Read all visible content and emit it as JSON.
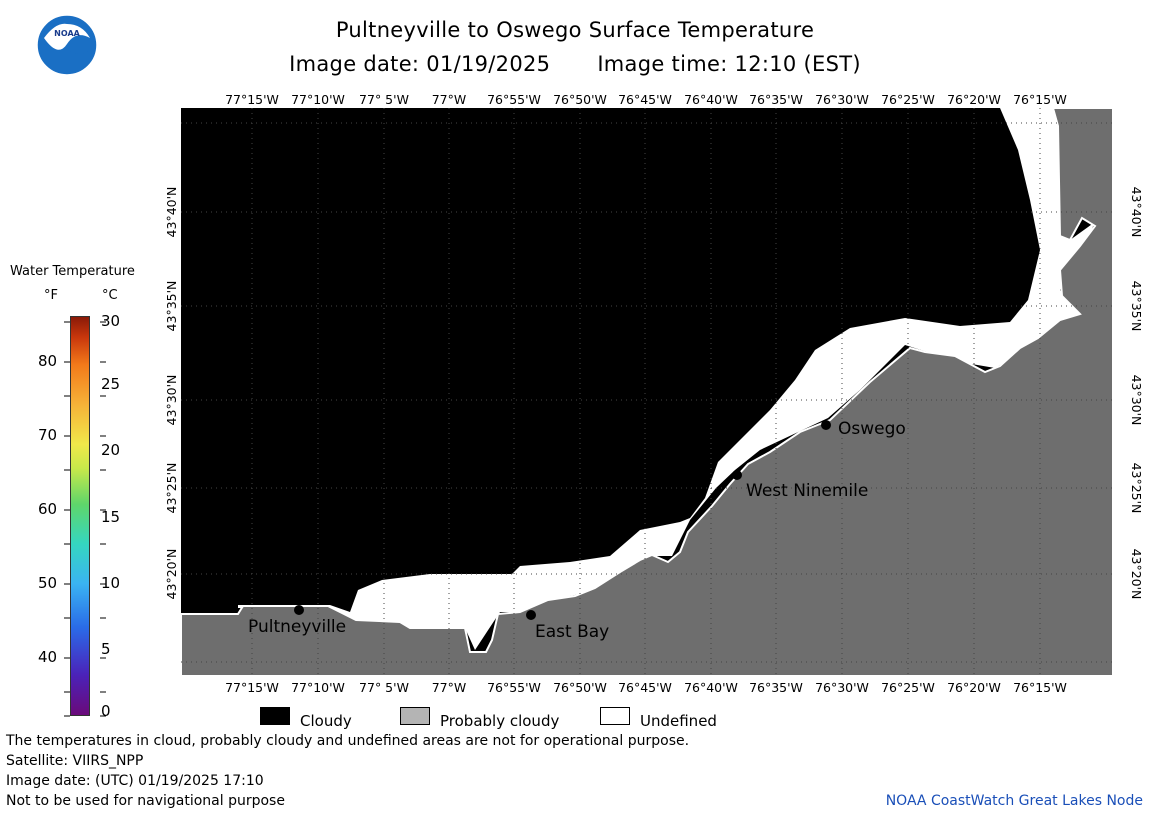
{
  "title": "Pultneyville to Oswego Surface Temperature",
  "image_date_label": "Image date: 01/19/2025",
  "image_time_label": "Image time: 12:10 (EST)",
  "logo_text": "NOAA",
  "colorbar": {
    "title": "Water Temperature",
    "unit_f": "°F",
    "unit_c": "°C",
    "fahrenheit_ticks": [
      "80",
      "70",
      "60",
      "50",
      "40"
    ],
    "celsius_ticks": [
      "30",
      "25",
      "20",
      "15",
      "10",
      "5",
      "0"
    ]
  },
  "map": {
    "lon_labels": [
      "77°15'W",
      "77°10'W",
      "77° 5'W",
      "77°W",
      "76°55'W",
      "76°50'W",
      "76°45'W",
      "76°40'W",
      "76°35'W",
      "76°30'W",
      "76°25'W",
      "76°20'W",
      "76°15'W"
    ],
    "lat_labels": [
      "43°40'N",
      "43°35'N",
      "43°30'N",
      "43°25'N",
      "43°20'N"
    ],
    "places": [
      "Oswego",
      "West Ninemile",
      "East Bay",
      "Pultneyville"
    ],
    "colors": {
      "cloudy": "#000000",
      "land": "#6e6e6e",
      "undefined": "#ffffff",
      "probably_cloudy": "#b4b4b4"
    }
  },
  "legend": {
    "cloudy": "Cloudy",
    "probably_cloudy": "Probably cloudy",
    "undefined": "Undefined"
  },
  "footer": {
    "note": "The temperatures in cloud, probably cloudy and undefined areas are not for operational purpose.",
    "satellite": "Satellite: VIIRS_NPP",
    "image_date_utc": "Image date: (UTC) 01/19/2025  17:10",
    "nav_warning": "Not to be used for navigational purpose",
    "credit": "NOAA CoastWatch Great Lakes Node"
  }
}
